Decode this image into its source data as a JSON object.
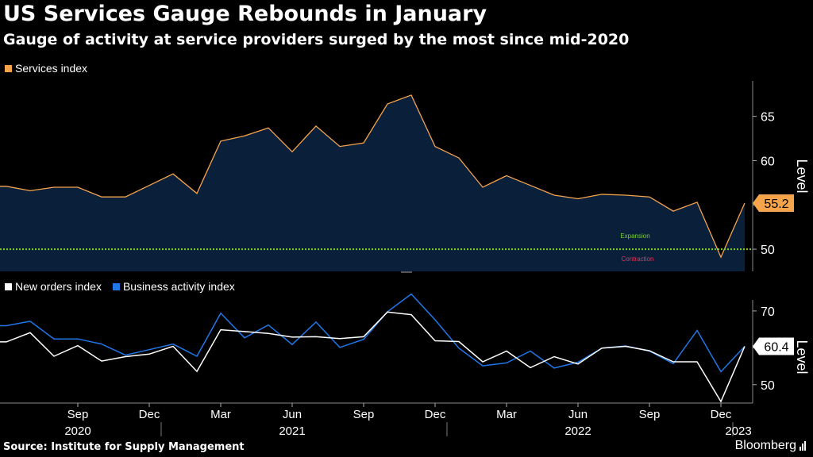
{
  "header": {
    "title": "US Services Gauge Rebounds in January",
    "subtitle": "Gauge of activity at service providers surged by the most since mid-2020"
  },
  "footer": {
    "source": "Source: Institute for Supply Management",
    "brand": "Bloomberg"
  },
  "colors": {
    "services": "#f6a44c",
    "new_orders": "#ffffff",
    "business_activity": "#1f77e8",
    "area_fill": "#0a1f3a",
    "threshold": "#7bd12b",
    "expansion_label": "#7bd12b",
    "contraction_label": "#e8365d",
    "grid": "#333333"
  },
  "chart_data": [
    {
      "type": "area",
      "x": [
        "2020-06",
        "2020-07",
        "2020-08",
        "2020-09",
        "2020-10",
        "2020-11",
        "2020-12",
        "2021-01",
        "2021-02",
        "2021-03",
        "2021-04",
        "2021-05",
        "2021-06",
        "2021-07",
        "2021-08",
        "2021-09",
        "2021-10",
        "2021-11",
        "2021-12",
        "2022-01",
        "2022-02",
        "2022-03",
        "2022-04",
        "2022-05",
        "2022-06",
        "2022-07",
        "2022-08",
        "2022-09",
        "2022-10",
        "2022-11",
        "2022-12",
        "2023-01"
      ],
      "series": [
        {
          "name": "Services index",
          "values": [
            57.1,
            56.6,
            57.0,
            57.0,
            55.9,
            55.9,
            57.2,
            58.5,
            56.3,
            62.2,
            62.8,
            63.7,
            61.0,
            63.9,
            61.6,
            62.0,
            66.4,
            67.4,
            61.6,
            60.3,
            57.0,
            58.3,
            57.2,
            56.1,
            55.7,
            56.2,
            56.1,
            55.9,
            54.3,
            55.3,
            49.1,
            55.2
          ]
        }
      ],
      "title": "",
      "xlabel": "",
      "ylabel": "Level",
      "ylim": [
        47.5,
        69
      ],
      "yticks": [
        "50",
        "55",
        "60",
        "65"
      ],
      "threshold": 50,
      "threshold_labels": {
        "above": "Expansion",
        "below": "Contraction"
      },
      "last_value_label": "55.2",
      "legend": "top-left",
      "grid": false
    },
    {
      "type": "line",
      "x": [
        "2020-06",
        "2020-07",
        "2020-08",
        "2020-09",
        "2020-10",
        "2020-11",
        "2020-12",
        "2021-01",
        "2021-02",
        "2021-03",
        "2021-04",
        "2021-05",
        "2021-06",
        "2021-07",
        "2021-08",
        "2021-09",
        "2021-10",
        "2021-11",
        "2021-12",
        "2022-01",
        "2022-02",
        "2022-03",
        "2022-04",
        "2022-05",
        "2022-06",
        "2022-07",
        "2022-08",
        "2022-09",
        "2022-10",
        "2022-11",
        "2022-12",
        "2023-01"
      ],
      "series": [
        {
          "name": "New orders index",
          "values": [
            61.6,
            64.1,
            57.7,
            60.6,
            56.4,
            57.6,
            58.3,
            60.4,
            53.6,
            64.9,
            64.4,
            63.9,
            62.9,
            63.0,
            62.5,
            63.0,
            69.7,
            69.0,
            61.9,
            61.7,
            56.2,
            59.1,
            54.6,
            57.6,
            55.6,
            59.9,
            60.4,
            59.2,
            56.2,
            56.2,
            45.4,
            60.4
          ]
        },
        {
          "name": "Business activity index",
          "values": [
            66.0,
            67.2,
            62.4,
            62.4,
            61.0,
            58.0,
            59.5,
            61.0,
            57.7,
            69.4,
            62.7,
            66.2,
            60.9,
            67.0,
            60.1,
            62.3,
            69.8,
            74.6,
            67.6,
            59.9,
            55.1,
            55.9,
            59.1,
            54.5,
            56.1,
            59.9,
            60.5,
            59.1,
            55.7,
            64.7,
            53.5,
            60.4
          ]
        }
      ],
      "xlabel": "",
      "ylabel": "Level",
      "ylim": [
        45,
        73
      ],
      "yticks": [
        "50",
        "60",
        "70"
      ],
      "last_value_label": "60.4",
      "legend": "top-left",
      "grid": false,
      "x_tick_labels": [
        "Sep",
        "Dec",
        "Mar",
        "Jun",
        "Sep",
        "Dec",
        "Mar",
        "Jun",
        "Sep",
        "Dec"
      ],
      "x_tick_dates": [
        "2020-09",
        "2020-12",
        "2021-03",
        "2021-06",
        "2021-09",
        "2021-12",
        "2022-03",
        "2022-06",
        "2022-09",
        "2022-12"
      ],
      "year_labels": [
        "2020",
        "2021",
        "2022",
        "2023"
      ],
      "year_dates": [
        "2020-09",
        "2021-06",
        "2022-06",
        "2023-01"
      ]
    }
  ]
}
